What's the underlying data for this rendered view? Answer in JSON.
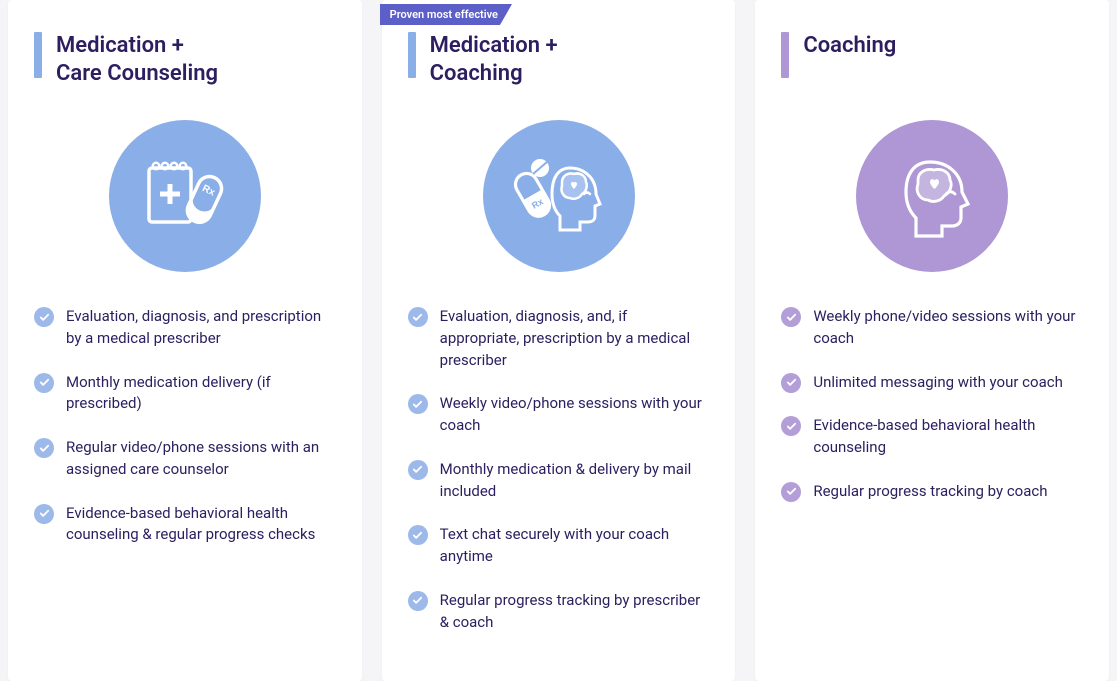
{
  "colors": {
    "bg": "#f5f5f7",
    "card_bg": "#ffffff",
    "text": "#2c1e5f",
    "ribbon_bg": "#5b5fc7",
    "ribbon_text": "#ffffff",
    "blue_accent": "#8aaee8",
    "blue_check": "#9db9ea",
    "purple_accent": "#ae97d4",
    "purple_check": "#b39ed7",
    "icon_stroke": "#ffffff"
  },
  "ribbon_label": "Proven most effective",
  "cards": [
    {
      "title": "Medication +\nCare Counseling",
      "bar_color": "#8aaee8",
      "circle_color": "#8aaee8",
      "check_color": "#9db9ea",
      "icon": "rx-pad-pill",
      "features": [
        "Evaluation, diagnosis, and prescription by a medical prescriber",
        "Monthly medication delivery (if prescribed)",
        "Regular video/phone sessions with an assigned care counselor",
        "Evidence-based behavioral health counseling & regular progress checks"
      ]
    },
    {
      "title": "Medication +\nCoaching",
      "bar_color": "#8aaee8",
      "circle_color": "#8aaee8",
      "check_color": "#9db9ea",
      "ribbon": true,
      "icon": "pill-head",
      "features": [
        "Evaluation, diagnosis, and, if appropriate, prescription by a medical prescriber",
        "Weekly video/phone sessions with your coach",
        "Monthly medication & delivery by mail included",
        "Text chat securely with your coach anytime",
        "Regular progress tracking by prescriber & coach"
      ]
    },
    {
      "title": "Coaching",
      "bar_color": "#ae97d4",
      "circle_color": "#ae97d4",
      "check_color": "#b39ed7",
      "icon": "head",
      "features": [
        "Weekly phone/video sessions with your coach",
        "Unlimited messaging with your coach",
        "Evidence-based behavioral health counseling",
        "Regular progress tracking by coach"
      ]
    }
  ]
}
